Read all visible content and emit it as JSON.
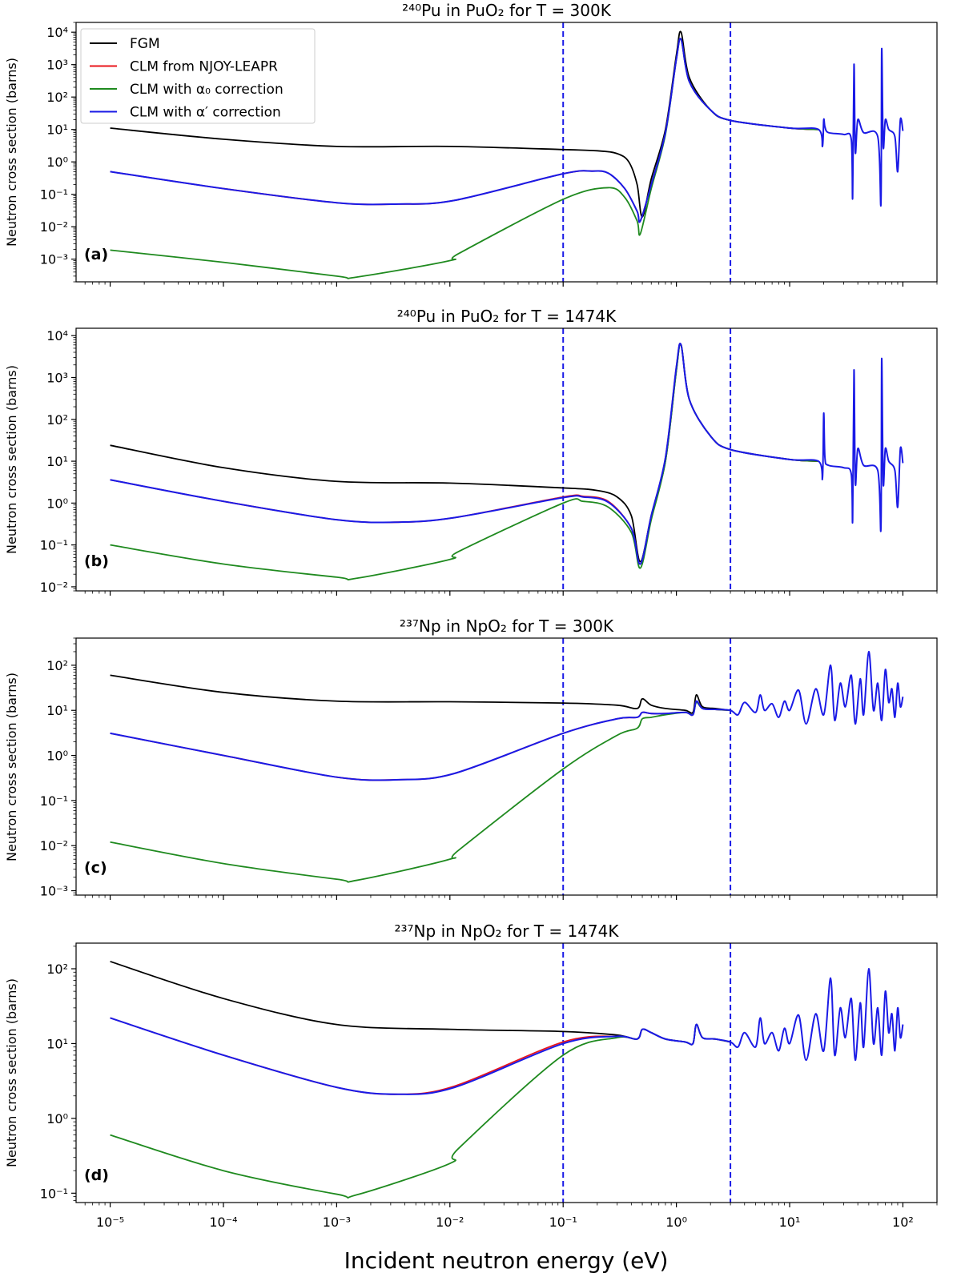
{
  "figure": {
    "xlabel": "Incident neutron energy (eV)",
    "ylabel": "Neutron cross section (barns)",
    "legend": [
      "FGM",
      "CLM from NJOY-LEAPR",
      "CLM with α₀ correction",
      "CLM with α′ correction"
    ],
    "colors": {
      "FGM": "#000000",
      "NJOY": "#e8151b",
      "alpha0": "#1f8a1f",
      "alphap": "#1a1ae6",
      "vline": "#1a1ae6"
    }
  },
  "chart_data": [
    {
      "type": "line",
      "panel": "(a)",
      "title": "²⁴⁰Pu in PuO₂ for T = 300K",
      "xlabel": "",
      "ylabel": "Neutron cross section (barns)",
      "xscale": "log",
      "yscale": "log",
      "xlim": [
        5e-06,
        200
      ],
      "ylim": [
        0.0002,
        20000
      ],
      "x_ticks": [
        "",
        "",
        "",
        "",
        "",
        "",
        "",
        ""
      ],
      "y_ticks": [
        "10⁻³",
        "10⁻²",
        "10⁻¹",
        "10⁰",
        "10¹",
        "10²",
        "10³",
        "10⁴"
      ],
      "vlines": [
        0.1,
        3
      ],
      "legend_position": "upper left",
      "series": [
        {
          "name": "FGM",
          "color": "#000000",
          "x": [
            1e-05,
            0.0001,
            0.001,
            0.01,
            0.1,
            0.2,
            0.3,
            0.38,
            0.45,
            0.5,
            0.6,
            0.8,
            1.0,
            1.1,
            1.3,
            2,
            3,
            10,
            18
          ],
          "y": [
            11,
            5,
            3,
            3,
            2.4,
            2.2,
            1.8,
            1.0,
            0.2,
            0.02,
            0.3,
            10,
            2000,
            10000,
            400,
            40,
            19,
            11,
            10
          ]
        },
        {
          "name": "CLM from NJOY-LEAPR",
          "color": "#e8151b",
          "x": [
            1e-05,
            0.0001,
            0.001,
            0.0035,
            0.011,
            0.1,
            0.18,
            0.25,
            0.35,
            0.45,
            0.48,
            0.6,
            0.8,
            1.0,
            1.1,
            1.3,
            2,
            3,
            10,
            18
          ],
          "y": [
            0.5,
            0.15,
            0.055,
            0.05,
            0.065,
            0.43,
            0.52,
            0.45,
            0.15,
            0.03,
            0.015,
            0.2,
            8,
            1500,
            6000,
            300,
            40,
            19,
            11,
            10
          ]
        },
        {
          "name": "CLM with α₀ correction",
          "color": "#1f8a1f",
          "x": [
            1e-05,
            0.0001,
            0.001,
            0.0015,
            0.01,
            0.012,
            0.1,
            0.25,
            0.35,
            0.45,
            0.48,
            0.6,
            0.8,
            1.0,
            1.1,
            1.3,
            2,
            3,
            10,
            18
          ],
          "y": [
            0.0019,
            0.0008,
            0.0003,
            0.00028,
            0.0009,
            0.0015,
            0.07,
            0.16,
            0.08,
            0.015,
            0.006,
            0.15,
            7,
            1500,
            6000,
            300,
            40,
            19,
            11,
            10
          ]
        },
        {
          "name": "CLM with α′ correction",
          "color": "#1a1ae6",
          "x": [
            1e-05,
            0.0001,
            0.001,
            0.0035,
            0.011,
            0.1,
            0.18,
            0.25,
            0.35,
            0.45,
            0.48,
            0.6,
            0.8,
            1.0,
            1.1,
            1.3,
            2,
            3,
            10,
            18,
            19.5,
            20,
            20.5,
            22,
            30,
            35,
            36,
            37,
            38,
            40,
            45,
            60,
            64,
            65,
            67,
            70,
            75,
            85,
            90,
            95,
            100
          ],
          "y": [
            0.5,
            0.15,
            0.055,
            0.05,
            0.065,
            0.43,
            0.52,
            0.45,
            0.15,
            0.03,
            0.015,
            0.2,
            8,
            1500,
            6000,
            300,
            40,
            19,
            11,
            10,
            3,
            20,
            12,
            8,
            7,
            5,
            0.08,
            1000,
            2,
            20,
            8,
            6,
            0.05,
            3000,
            3,
            20,
            10,
            6,
            0.5,
            20,
            9
          ]
        }
      ]
    },
    {
      "type": "line",
      "panel": "(b)",
      "title": "²⁴⁰Pu in PuO₂ for T = 1474K",
      "xlabel": "",
      "ylabel": "Neutron cross section (barns)",
      "xscale": "log",
      "yscale": "log",
      "xlim": [
        5e-06,
        200
      ],
      "ylim": [
        0.008,
        15000
      ],
      "x_ticks": [
        "",
        "",
        "",
        "",
        "",
        "",
        "",
        ""
      ],
      "y_ticks": [
        "10⁻²",
        "10⁻¹",
        "10⁰",
        "10¹",
        "10²",
        "10³",
        "10⁴"
      ],
      "vlines": [
        0.1,
        3
      ],
      "series": [
        {
          "name": "FGM",
          "color": "#000000",
          "x": [
            1e-05,
            0.0001,
            0.001,
            0.01,
            0.1,
            0.2,
            0.3,
            0.4,
            0.48,
            0.6,
            0.8,
            1.0,
            1.1,
            1.3,
            2,
            3,
            10,
            18
          ],
          "y": [
            24,
            7,
            3.3,
            3,
            2.3,
            2.0,
            1.4,
            0.5,
            0.04,
            0.5,
            10,
            1500,
            6000,
            300,
            40,
            19,
            11,
            10
          ]
        },
        {
          "name": "CLM from NJOY-LEAPR",
          "color": "#e8151b",
          "x": [
            1e-05,
            0.0001,
            0.001,
            0.0035,
            0.011,
            0.1,
            0.15,
            0.25,
            0.4,
            0.48,
            0.6,
            0.8,
            1.0,
            1.1,
            1.3,
            2,
            3,
            10,
            18
          ],
          "y": [
            3.6,
            1.1,
            0.4,
            0.35,
            0.45,
            1.4,
            1.45,
            1.1,
            0.25,
            0.035,
            0.5,
            12,
            1800,
            6000,
            300,
            40,
            19,
            11,
            10
          ]
        },
        {
          "name": "CLM with α₀ correction",
          "color": "#1f8a1f",
          "x": [
            1e-05,
            0.0001,
            0.001,
            0.0015,
            0.01,
            0.012,
            0.1,
            0.15,
            0.25,
            0.4,
            0.48,
            0.6,
            0.8,
            1.0,
            1.1,
            1.3,
            2,
            3,
            10,
            18
          ],
          "y": [
            0.1,
            0.035,
            0.017,
            0.016,
            0.045,
            0.07,
            1.0,
            1.1,
            0.8,
            0.2,
            0.028,
            0.4,
            10,
            1500,
            6000,
            300,
            40,
            19,
            11,
            10
          ]
        },
        {
          "name": "CLM with α′ correction",
          "color": "#1a1ae6",
          "x": [
            1e-05,
            0.0001,
            0.001,
            0.0035,
            0.011,
            0.1,
            0.15,
            0.25,
            0.4,
            0.48,
            0.6,
            0.8,
            1.0,
            1.1,
            1.3,
            2,
            3,
            10,
            18,
            19.5,
            20,
            20.5,
            22,
            30,
            35,
            36,
            37,
            38,
            40,
            45,
            60,
            64,
            65,
            67,
            70,
            75,
            85,
            90,
            95,
            100
          ],
          "y": [
            3.6,
            1.1,
            0.4,
            0.35,
            0.45,
            1.35,
            1.4,
            1.05,
            0.25,
            0.035,
            0.5,
            12,
            1800,
            6000,
            300,
            40,
            19,
            11,
            10,
            4,
            140,
            12,
            8,
            7,
            5,
            0.4,
            1500,
            3,
            20,
            8,
            6,
            0.25,
            2800,
            3,
            20,
            10,
            6,
            0.8,
            20,
            9
          ]
        }
      ]
    },
    {
      "type": "line",
      "panel": "(c)",
      "title": "²³⁷Np in NpO₂ for T = 300K",
      "xlabel": "",
      "ylabel": "Neutron cross section (barns)",
      "xscale": "log",
      "yscale": "log",
      "xlim": [
        5e-06,
        200
      ],
      "ylim": [
        0.0008,
        400
      ],
      "x_ticks": [
        "",
        "",
        "",
        "",
        "",
        "",
        "",
        ""
      ],
      "y_ticks": [
        "10⁻³",
        "10⁻²",
        "10⁻¹",
        "10⁰",
        "10¹",
        "10²"
      ],
      "vlines": [
        0.1,
        3
      ],
      "series": [
        {
          "name": "FGM",
          "color": "#000000",
          "x": [
            1e-05,
            0.0001,
            0.001,
            0.01,
            0.1,
            0.3,
            0.45,
            0.5,
            0.6,
            0.8,
            1.2,
            1.4,
            1.5,
            1.7,
            2.2,
            3
          ],
          "y": [
            60,
            25,
            16,
            15.5,
            14.5,
            13,
            11,
            18,
            13,
            11,
            10,
            9,
            22,
            12,
            11,
            10
          ]
        },
        {
          "name": "CLM from NJOY-LEAPR",
          "color": "#e8151b",
          "x": [
            1e-05,
            0.0001,
            0.001,
            0.0035,
            0.011,
            0.1,
            0.3,
            0.45,
            0.5,
            0.6,
            0.8,
            1.2,
            1.4,
            1.5,
            1.7,
            2.2,
            3
          ],
          "y": [
            3.1,
            1.0,
            0.33,
            0.29,
            0.4,
            3.1,
            6.5,
            7,
            9,
            8.5,
            8.5,
            9,
            8,
            16,
            11,
            10.5,
            10
          ]
        },
        {
          "name": "CLM with α₀ correction",
          "color": "#1f8a1f",
          "x": [
            1e-05,
            0.0001,
            0.001,
            0.0015,
            0.01,
            0.012,
            0.1,
            0.3,
            0.45,
            0.5,
            0.6,
            0.8,
            1.2,
            1.4,
            1.5,
            1.7,
            2.2,
            3
          ],
          "y": [
            0.012,
            0.004,
            0.0018,
            0.0017,
            0.005,
            0.008,
            0.5,
            2.8,
            4,
            6.5,
            7,
            8,
            9,
            8,
            15,
            11,
            10.5,
            10
          ]
        },
        {
          "name": "CLM with α′ correction",
          "color": "#1a1ae6",
          "x": [
            1e-05,
            0.0001,
            0.001,
            0.0035,
            0.011,
            0.1,
            0.3,
            0.45,
            0.5,
            0.6,
            0.8,
            1.2,
            1.4,
            1.5,
            1.7,
            2.2,
            3,
            3.5,
            4,
            5,
            5.5,
            6,
            7,
            8,
            9,
            10,
            12,
            14,
            17,
            20,
            23,
            25,
            28,
            31,
            35,
            38,
            42,
            45,
            50,
            55,
            60,
            65,
            70,
            75,
            80,
            85,
            90,
            95,
            100
          ],
          "y": [
            3.1,
            1.0,
            0.33,
            0.29,
            0.4,
            3.1,
            6.5,
            7,
            9,
            8.5,
            8.5,
            9,
            8,
            16,
            11,
            10.5,
            10,
            8,
            15,
            9,
            22,
            10,
            14,
            7,
            16,
            10,
            28,
            5,
            30,
            8,
            100,
            6,
            40,
            12,
            60,
            5,
            50,
            8,
            200,
            10,
            40,
            6,
            80,
            15,
            30,
            7,
            40,
            12,
            20
          ]
        }
      ]
    },
    {
      "type": "line",
      "panel": "(d)",
      "title": "²³⁷Np in NpO₂ for T = 1474K",
      "xlabel": "Incident neutron energy (eV)",
      "ylabel": "Neutron cross section (barns)",
      "xscale": "log",
      "yscale": "log",
      "xlim": [
        5e-06,
        200
      ],
      "ylim": [
        0.075,
        220
      ],
      "x_ticks": [
        "10⁻⁵",
        "10⁻⁴",
        "10⁻³",
        "10⁻²",
        "10⁻¹",
        "10⁰",
        "10¹",
        "10²"
      ],
      "y_ticks": [
        "10⁻¹",
        "10⁰",
        "10¹",
        "10²"
      ],
      "vlines": [
        0.1,
        3
      ],
      "series": [
        {
          "name": "FGM",
          "color": "#000000",
          "x": [
            1e-05,
            0.0001,
            0.001,
            0.01,
            0.1,
            0.3,
            0.45,
            0.5,
            0.6,
            0.8,
            1.2,
            1.4,
            1.5,
            1.7,
            2.2,
            3
          ],
          "y": [
            125,
            40,
            18,
            15.5,
            14.5,
            13,
            11.5,
            15.5,
            14,
            11.5,
            10.5,
            10,
            18,
            12,
            11.5,
            10.5
          ]
        },
        {
          "name": "CLM from NJOY-LEAPR",
          "color": "#e8151b",
          "x": [
            1e-05,
            0.0001,
            0.001,
            0.0035,
            0.011,
            0.1,
            0.3,
            0.45,
            0.5,
            0.6,
            0.8,
            1.2,
            1.4,
            1.5,
            1.7,
            2.2,
            3
          ],
          "y": [
            22,
            7,
            2.6,
            2.1,
            2.7,
            10.5,
            12.5,
            11.5,
            15.5,
            14,
            11.5,
            10.5,
            10,
            18,
            12,
            11.5,
            10.5
          ]
        },
        {
          "name": "CLM with α₀ correction",
          "color": "#1f8a1f",
          "x": [
            1e-05,
            0.0001,
            0.001,
            0.0015,
            0.01,
            0.012,
            0.1,
            0.3,
            0.45,
            0.5,
            0.6,
            0.8,
            1.2,
            1.4,
            1.5,
            1.7,
            2.2,
            3
          ],
          "y": [
            0.6,
            0.2,
            0.097,
            0.095,
            0.25,
            0.4,
            7,
            12,
            11.5,
            15.5,
            14,
            11.5,
            10.5,
            10,
            18,
            12,
            11.5,
            10.5
          ]
        },
        {
          "name": "CLM with α′ correction",
          "color": "#1a1ae6",
          "x": [
            1e-05,
            0.0001,
            0.001,
            0.0035,
            0.011,
            0.1,
            0.3,
            0.45,
            0.5,
            0.6,
            0.8,
            1.2,
            1.4,
            1.5,
            1.7,
            2.2,
            3,
            3.5,
            4,
            5,
            5.5,
            6,
            7,
            8,
            9,
            10,
            12,
            14,
            17,
            20,
            23,
            25,
            28,
            31,
            35,
            38,
            42,
            45,
            50,
            55,
            60,
            65,
            70,
            75,
            80,
            85,
            90,
            95,
            100
          ],
          "y": [
            22,
            7,
            2.6,
            2.1,
            2.6,
            10,
            12.5,
            11.5,
            15.5,
            14,
            11.5,
            10.5,
            10,
            18,
            12,
            11.5,
            10.5,
            9,
            14,
            9,
            22,
            10,
            14,
            8,
            16,
            10,
            24,
            6,
            25,
            8,
            75,
            7,
            30,
            12,
            40,
            6,
            35,
            9,
            100,
            10,
            30,
            7,
            50,
            14,
            25,
            8,
            30,
            12,
            18
          ]
        }
      ]
    }
  ]
}
